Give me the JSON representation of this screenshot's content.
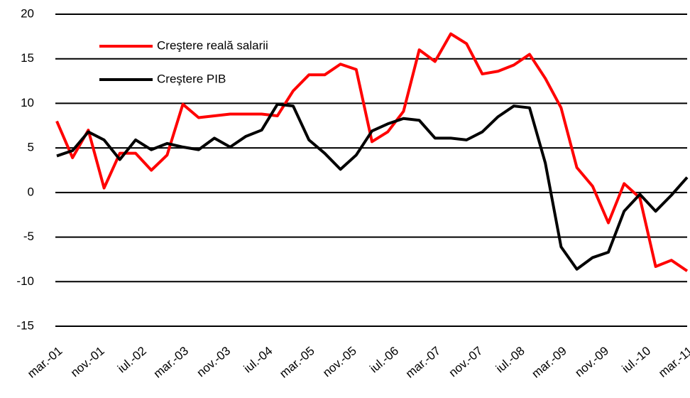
{
  "chart_data": {
    "type": "line",
    "x": [
      0,
      3,
      6,
      9,
      12,
      15,
      18,
      21,
      24,
      27,
      30,
      33,
      36,
      39,
      42,
      45,
      48,
      51,
      54,
      57,
      60,
      63,
      66,
      69,
      72,
      75,
      78,
      81,
      84,
      87,
      90,
      93,
      96,
      99,
      102,
      105,
      108,
      111,
      114,
      117,
      120
    ],
    "xlim": [
      0,
      120
    ],
    "xticks": [
      {
        "value": 0,
        "label": "mar.-01"
      },
      {
        "value": 8,
        "label": "nov.-01"
      },
      {
        "value": 16,
        "label": "iul.-02"
      },
      {
        "value": 24,
        "label": "mar.-03"
      },
      {
        "value": 32,
        "label": "nov.-03"
      },
      {
        "value": 40,
        "label": "iul.-04"
      },
      {
        "value": 48,
        "label": "mar.-05"
      },
      {
        "value": 56,
        "label": "nov.-05"
      },
      {
        "value": 64,
        "label": "iul.-06"
      },
      {
        "value": 72,
        "label": "mar.-07"
      },
      {
        "value": 80,
        "label": "nov.-07"
      },
      {
        "value": 88,
        "label": "iul.-08"
      },
      {
        "value": 96,
        "label": "mar.-09"
      },
      {
        "value": 104,
        "label": "nov.-09"
      },
      {
        "value": 112,
        "label": "iul.-10"
      },
      {
        "value": 120,
        "label": "mar.-11"
      }
    ],
    "ylim": [
      -15,
      20
    ],
    "yticks": [
      -15,
      -10,
      -5,
      0,
      5,
      10,
      15,
      20
    ],
    "grid": true,
    "legend": "upper left",
    "series": [
      {
        "name": "Creştere reală salarii",
        "color": "#ff0000",
        "values": [
          8.0,
          3.9,
          7.0,
          0.5,
          4.4,
          4.4,
          2.5,
          4.2,
          9.9,
          8.4,
          8.6,
          8.8,
          8.8,
          8.8,
          8.6,
          11.4,
          13.2,
          13.2,
          14.4,
          13.8,
          5.7,
          6.8,
          9.1,
          16.0,
          14.7,
          17.8,
          16.7,
          13.3,
          13.6,
          14.3,
          15.5,
          12.8,
          9.5,
          2.8,
          0.7,
          -3.4,
          1.0,
          -0.6,
          -8.3,
          -7.6,
          -8.8
        ]
      },
      {
        "name": "Creştere PIB",
        "color": "#000000",
        "values": [
          4.1,
          4.7,
          6.8,
          5.9,
          3.7,
          5.9,
          4.8,
          5.5,
          5.1,
          4.8,
          6.1,
          5.1,
          6.3,
          7.0,
          9.9,
          9.7,
          5.9,
          4.4,
          2.6,
          4.2,
          6.9,
          7.7,
          8.3,
          8.1,
          6.1,
          6.1,
          5.9,
          6.8,
          8.5,
          9.7,
          9.5,
          3.3,
          -6.1,
          -8.6,
          -7.3,
          -6.7,
          -2.1,
          -0.2,
          -2.1,
          -0.3,
          1.7
        ]
      }
    ]
  }
}
